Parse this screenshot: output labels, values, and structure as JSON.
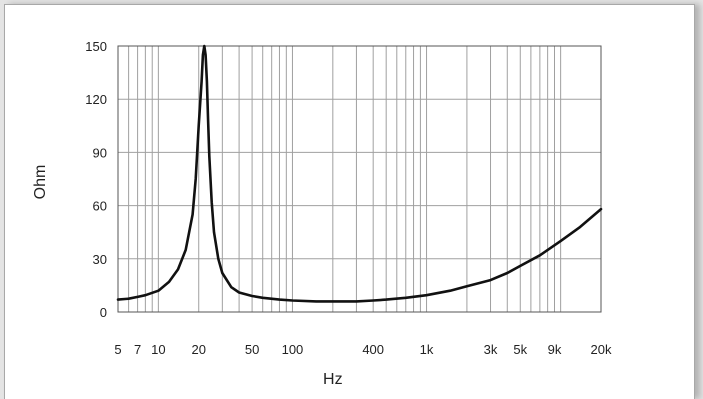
{
  "chart_data": {
    "type": "line",
    "xlabel": "Hz",
    "ylabel": "Ohm",
    "xscale": "log",
    "xlim": [
      5,
      20000
    ],
    "ylim": [
      0,
      150
    ],
    "grid": true,
    "x_ticks": [
      5,
      7,
      10,
      20,
      50,
      100,
      400,
      1000,
      3000,
      5000,
      9000,
      20000
    ],
    "x_tick_labels": [
      "5",
      "7",
      "10",
      "20",
      "50",
      "100",
      "400",
      "1k",
      "3k",
      "5k",
      "9k",
      "20k"
    ],
    "y_ticks": [
      0,
      30,
      60,
      90,
      120,
      150
    ],
    "y_tick_labels": [
      "0",
      "30",
      "60",
      "90",
      "120",
      "150"
    ],
    "line_color": "#111111",
    "grid_color": "#a0a0a0",
    "series": [
      {
        "x": [
          5,
          6,
          7,
          8,
          10,
          12,
          14,
          16,
          18,
          19,
          20,
          21,
          21.5,
          22,
          22.5,
          23,
          23.5,
          24,
          25,
          26,
          28,
          30,
          35,
          40,
          50,
          60,
          80,
          100,
          150,
          200,
          300,
          400,
          500,
          700,
          1000,
          1500,
          2000,
          3000,
          4000,
          5000,
          7000,
          10000,
          14000,
          20000
        ],
        "y": [
          7,
          7.5,
          8.5,
          9.5,
          12,
          17,
          24,
          35,
          55,
          75,
          105,
          130,
          145,
          150,
          145,
          130,
          108,
          88,
          62,
          45,
          30,
          22,
          14,
          11,
          9,
          8,
          7,
          6.5,
          6,
          6,
          6,
          6.5,
          7,
          8,
          9.5,
          12,
          14.5,
          18,
          22,
          26,
          32,
          40,
          48,
          58
        ]
      }
    ]
  }
}
